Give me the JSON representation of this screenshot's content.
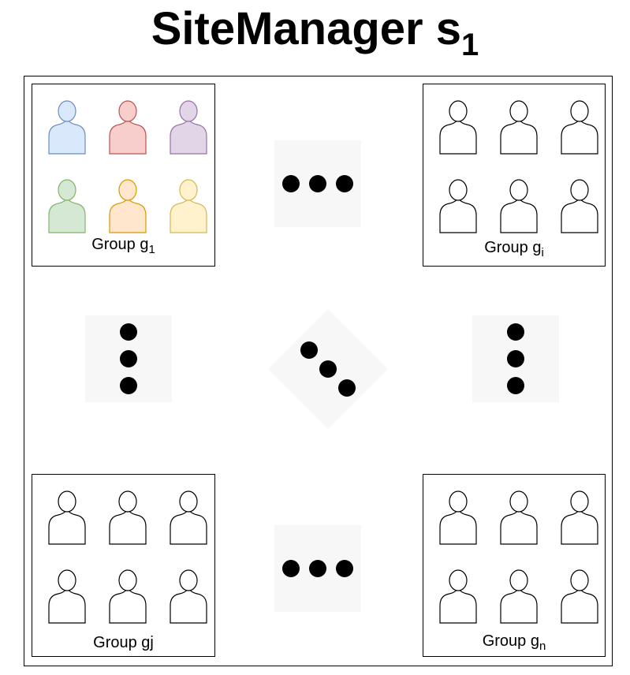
{
  "title": {
    "text": "SiteManager s",
    "sub": "1"
  },
  "groups": {
    "g1": {
      "prefix": "Group g",
      "sub": "1"
    },
    "gi": {
      "prefix": "Group g",
      "sub": "i"
    },
    "gj": {
      "prefix": "Group gj",
      "sub": ""
    },
    "gn": {
      "prefix": "Group g",
      "sub": "n"
    }
  },
  "colors": {
    "person1_fill": "#dae8fc",
    "person1_stroke": "#6c8ebf",
    "person2_fill": "#f8cecc",
    "person2_stroke": "#b85450",
    "person3_fill": "#e1d5e7",
    "person3_stroke": "#9673a6",
    "person4_fill": "#d5e8d4",
    "person4_stroke": "#82b366",
    "person5_fill": "#ffe6cc",
    "person5_stroke": "#d79b00",
    "person6_fill": "#fff2cc",
    "person6_stroke": "#d6b656",
    "outline": "#000000"
  }
}
